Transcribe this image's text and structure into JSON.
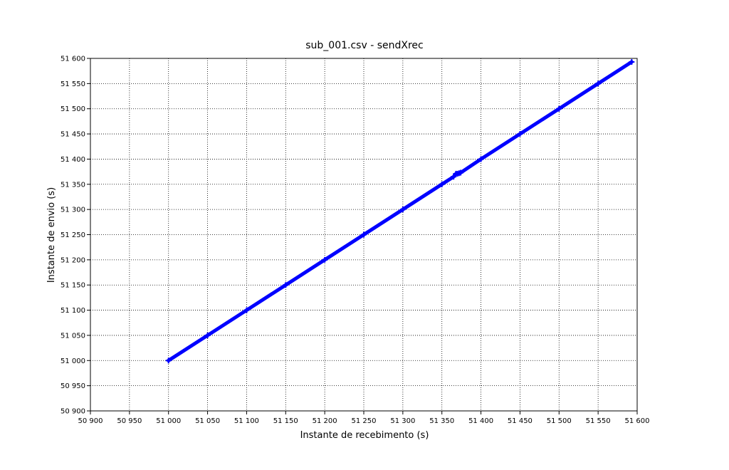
{
  "chart_data": {
    "type": "line",
    "title": "sub_001.csv - sendXrec",
    "xlabel": "Instante de recebimento (s)",
    "ylabel": "Instante de envio (s)",
    "xlim": [
      50900,
      51600
    ],
    "ylim": [
      50900,
      51600
    ],
    "x_ticks": [
      50900,
      50950,
      51000,
      51050,
      51100,
      51150,
      51200,
      51250,
      51300,
      51350,
      51400,
      51450,
      51500,
      51550,
      51600
    ],
    "y_ticks": [
      50900,
      50950,
      51000,
      51050,
      51100,
      51150,
      51200,
      51250,
      51300,
      51350,
      51400,
      51450,
      51500,
      51550,
      51600
    ],
    "x_tick_labels": [
      "50 900",
      "50 950",
      "51 000",
      "51 050",
      "51 100",
      "51 150",
      "51 200",
      "51 250",
      "51 300",
      "51 350",
      "51 400",
      "51 450",
      "51 500",
      "51 550",
      "51 600"
    ],
    "y_tick_labels": [
      "50 900",
      "50 950",
      "51 000",
      "51 050",
      "51 100",
      "51 150",
      "51 200",
      "51 250",
      "51 300",
      "51 350",
      "51 400",
      "51 450",
      "51 500",
      "51 550",
      "51 600"
    ],
    "grid": true,
    "marker": "+",
    "color": "#0000ff",
    "series": [
      {
        "x": [
          51000,
          51050,
          51100,
          51150,
          51200,
          51250,
          51300,
          51350,
          51365,
          51368,
          51370,
          51372,
          51374,
          51400,
          51450,
          51500,
          51550,
          51593
        ],
        "y": [
          51000,
          51050,
          51100,
          51150,
          51200,
          51250,
          51300,
          51350,
          51365,
          51371,
          51371,
          51372,
          51373,
          51400,
          51450,
          51500,
          51550,
          51593
        ]
      }
    ]
  }
}
